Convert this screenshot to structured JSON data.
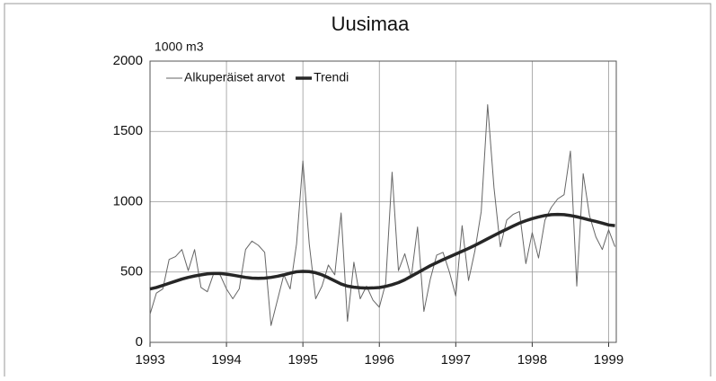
{
  "chart_data": {
    "type": "line",
    "title": "Uusimaa",
    "ylabel": "1000 m3",
    "x": [
      1993,
      1993.083,
      1993.167,
      1993.25,
      1993.333,
      1993.417,
      1993.5,
      1993.583,
      1993.667,
      1993.75,
      1993.833,
      1993.917,
      1994,
      1994.083,
      1994.167,
      1994.25,
      1994.333,
      1994.417,
      1994.5,
      1994.583,
      1994.667,
      1994.75,
      1994.833,
      1994.917,
      1995,
      1995.083,
      1995.167,
      1995.25,
      1995.333,
      1995.417,
      1995.5,
      1995.583,
      1995.667,
      1995.75,
      1995.833,
      1995.917,
      1996,
      1996.083,
      1996.167,
      1996.25,
      1996.333,
      1996.417,
      1996.5,
      1996.583,
      1996.667,
      1996.75,
      1996.833,
      1996.917,
      1997,
      1997.083,
      1997.167,
      1997.25,
      1997.333,
      1997.417,
      1997.5,
      1997.583,
      1997.667,
      1997.75,
      1997.833,
      1997.917,
      1998,
      1998.083,
      1998.167,
      1998.25,
      1998.333,
      1998.417,
      1998.5,
      1998.583,
      1998.667,
      1998.75,
      1998.833,
      1998.917,
      1999,
      1999.083
    ],
    "series": [
      {
        "name": "Alkuperäiset arvot",
        "color": "#666666",
        "width": 1,
        "values": [
          200,
          350,
          380,
          590,
          610,
          660,
          510,
          660,
          390,
          360,
          490,
          480,
          380,
          310,
          380,
          660,
          720,
          690,
          640,
          120,
          300,
          480,
          380,
          700,
          1290,
          700,
          310,
          400,
          550,
          480,
          920,
          150,
          570,
          310,
          400,
          300,
          250,
          420,
          1210,
          510,
          630,
          460,
          820,
          220,
          450,
          620,
          640,
          500,
          330,
          830,
          440,
          650,
          930,
          1690,
          1100,
          680,
          870,
          910,
          930,
          560,
          780,
          600,
          870,
          960,
          1020,
          1050,
          1360,
          400,
          1200,
          900,
          750,
          660,
          800,
          680
        ]
      },
      {
        "name": "Trendi",
        "color": "#262626",
        "width": 3.5,
        "values": [
          380,
          390,
          405,
          420,
          435,
          450,
          462,
          472,
          480,
          487,
          490,
          490,
          485,
          478,
          470,
          462,
          457,
          455,
          457,
          462,
          470,
          480,
          492,
          502,
          505,
          503,
          495,
          480,
          460,
          437,
          415,
          400,
          392,
          388,
          386,
          387,
          390,
          398,
          410,
          425,
          445,
          470,
          495,
          520,
          545,
          567,
          588,
          608,
          628,
          648,
          668,
          690,
          713,
          737,
          760,
          783,
          805,
          827,
          848,
          865,
          880,
          892,
          902,
          908,
          910,
          908,
          902,
          893,
          882,
          870,
          860,
          848,
          835,
          830
        ]
      }
    ],
    "xlim": [
      1993,
      1999.1
    ],
    "xticks": [
      1993,
      1994,
      1995,
      1996,
      1997,
      1998,
      1999
    ],
    "ylim": [
      0,
      2000
    ],
    "yticks": [
      0,
      500,
      1000,
      1500,
      2000
    ],
    "grid": true,
    "legend": "top-left"
  }
}
